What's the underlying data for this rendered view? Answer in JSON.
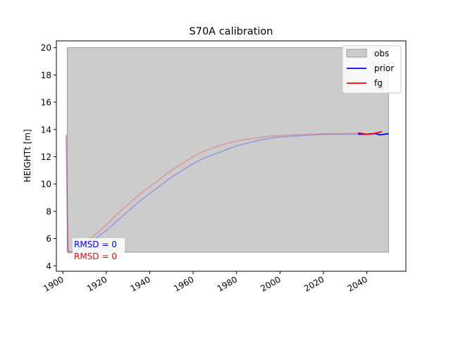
{
  "chart_data": {
    "type": "line",
    "title": "S70A calibration",
    "xlabel": "",
    "ylabel": "HEIGHTt [m]",
    "xlim": [
      1897,
      2058
    ],
    "ylim": [
      3.6,
      20.5
    ],
    "grid": false,
    "xticks": [
      1900,
      1920,
      1940,
      1960,
      1980,
      2000,
      2020,
      2040
    ],
    "yticks": [
      4,
      6,
      8,
      10,
      12,
      14,
      16,
      18,
      20
    ],
    "legend_position": "top-right",
    "obs": {
      "name": "obs",
      "type": "band",
      "x": [
        1902,
        2050
      ],
      "y_low": 5,
      "y_high": 20,
      "color": "#cccccc"
    },
    "series": [
      {
        "name": "prior",
        "color": "#0000ff",
        "x": [
          1901.5,
          1902.3,
          1902.8,
          1905,
          1910,
          1915,
          1920,
          1925,
          1930,
          1935,
          1940,
          1945,
          1950,
          1955,
          1960,
          1965,
          1970,
          1975,
          1980,
          1985,
          1990,
          1995,
          2000,
          2005,
          2010,
          2015,
          2020,
          2025,
          2030,
          2036,
          2040,
          2044,
          2046,
          2050
        ],
        "y": [
          13.6,
          5.2,
          4.9,
          5.0,
          5.4,
          6.0,
          6.6,
          7.3,
          8.0,
          8.7,
          9.3,
          9.9,
          10.5,
          11.0,
          11.5,
          11.9,
          12.2,
          12.5,
          12.8,
          13.0,
          13.2,
          13.35,
          13.45,
          13.5,
          13.55,
          13.6,
          13.65,
          13.65,
          13.65,
          13.65,
          13.65,
          13.7,
          13.6,
          13.7
        ],
        "highlight_from": 2036
      },
      {
        "name": "fg",
        "color": "#ff0000",
        "x": [
          1901.5,
          1902.3,
          1902.8,
          1905,
          1910,
          1915,
          1920,
          1925,
          1930,
          1935,
          1940,
          1945,
          1950,
          1955,
          1960,
          1965,
          1970,
          1975,
          1980,
          1985,
          1990,
          1995,
          2000,
          2005,
          2010,
          2015,
          2020,
          2025,
          2030,
          2036,
          2038,
          2040,
          2043,
          2046,
          2047
        ],
        "y": [
          13.6,
          5.3,
          5.0,
          5.1,
          5.6,
          6.3,
          7.0,
          7.8,
          8.5,
          9.2,
          9.8,
          10.4,
          11.0,
          11.5,
          12.0,
          12.4,
          12.7,
          12.95,
          13.15,
          13.3,
          13.4,
          13.5,
          13.55,
          13.6,
          13.62,
          13.65,
          13.68,
          13.7,
          13.7,
          13.75,
          13.7,
          13.65,
          13.7,
          13.8,
          13.85
        ],
        "highlight_from": 2036
      }
    ],
    "annotations": [
      {
        "text": "RMSD = 0",
        "color": "#0000ff"
      },
      {
        "text": "RMSD = 0",
        "color": "#ff0000"
      }
    ]
  }
}
